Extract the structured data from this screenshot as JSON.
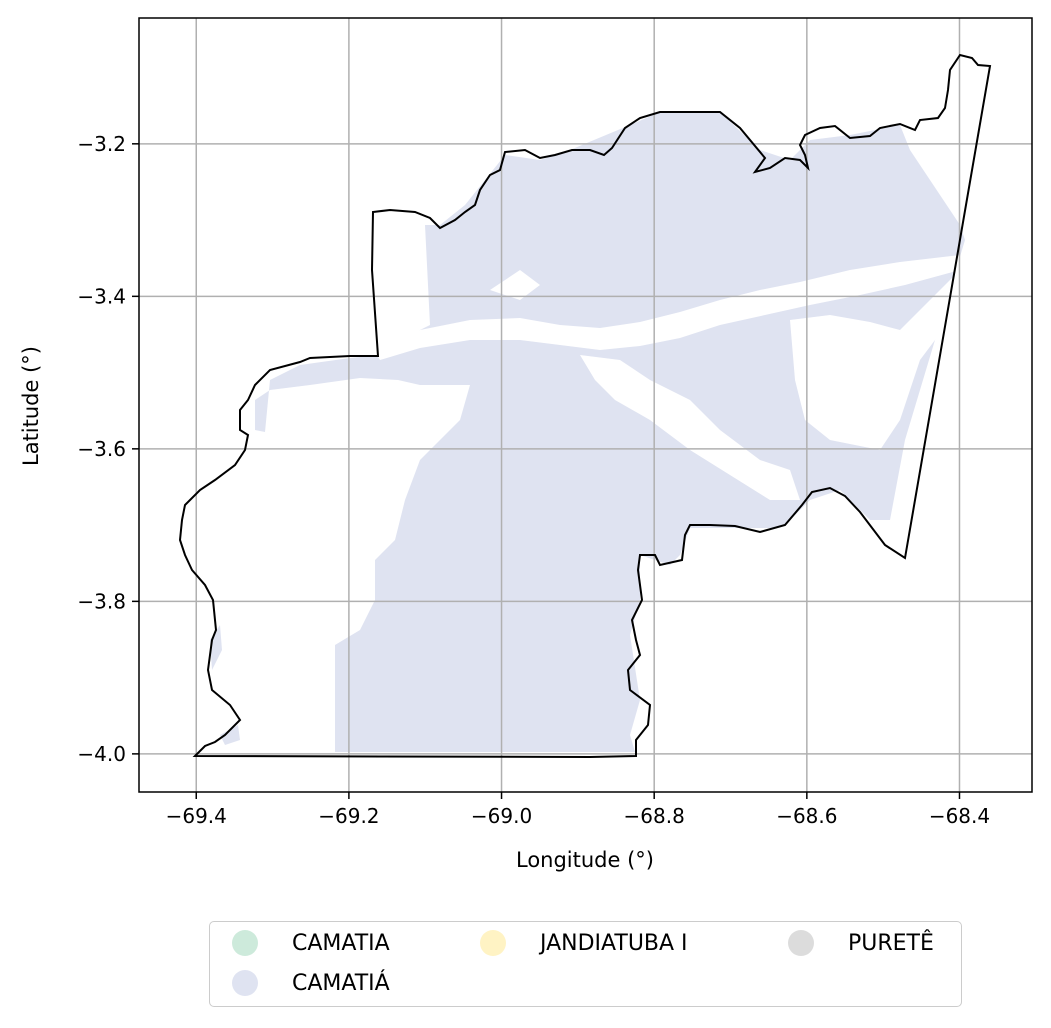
{
  "map": {
    "xlabel": "Longitude (°)",
    "ylabel": "Latitude (°)",
    "xlim": [
      -69.475,
      -68.305
    ],
    "ylim": [
      -4.05,
      -3.035
    ],
    "xticks": [
      -69.4,
      -69.2,
      -69.0,
      -68.8,
      -68.6,
      -68.4
    ],
    "xtick_labels": [
      "−69.4",
      "−69.2",
      "−69.0",
      "−68.8",
      "−68.6",
      "−68.4"
    ],
    "yticks": [
      -3.2,
      -3.4,
      -3.6,
      -3.8,
      -4.0
    ],
    "ytick_labels": [
      "−3.2",
      "−3.4",
      "−3.6",
      "−3.8",
      "−4.0"
    ],
    "grid": true,
    "boundary_color": "#000000",
    "fill_color": "#dfe3f1"
  },
  "legend": {
    "placement": "below",
    "items": [
      {
        "label": "CAMATIA",
        "color": "#cdeadb"
      },
      {
        "label": "CAMATIÁ",
        "color": "#dfe3f1"
      },
      {
        "label": "JANDIATUBA I",
        "color": "#fff3c4"
      },
      {
        "label": "PURETÊ",
        "color": "#dcdcdc"
      }
    ]
  }
}
